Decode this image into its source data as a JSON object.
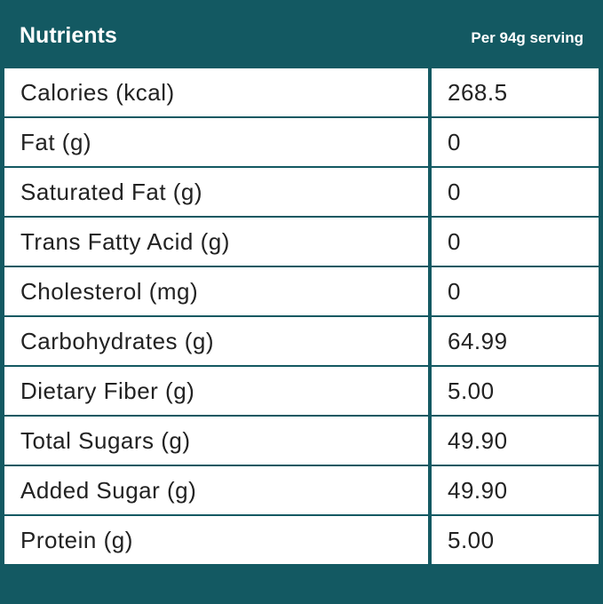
{
  "header": {
    "title": "Nutrients",
    "serving": "Per 94g serving"
  },
  "table": {
    "rows": [
      [
        "Calories (kcal)",
        "268.5"
      ],
      [
        "Fat (g)",
        "0"
      ],
      [
        "Saturated Fat (g)",
        "0"
      ],
      [
        "Trans Fatty Acid (g)",
        "0"
      ],
      [
        "Cholesterol (mg)",
        "0"
      ],
      [
        "Carbohydrates (g)",
        "64.99"
      ],
      [
        "Dietary Fiber (g)",
        "5.00"
      ],
      [
        "Total Sugars (g)",
        "49.90"
      ],
      [
        "Added Sugar (g)",
        "49.90"
      ],
      [
        "Protein (g)",
        "5.00"
      ]
    ]
  }
}
